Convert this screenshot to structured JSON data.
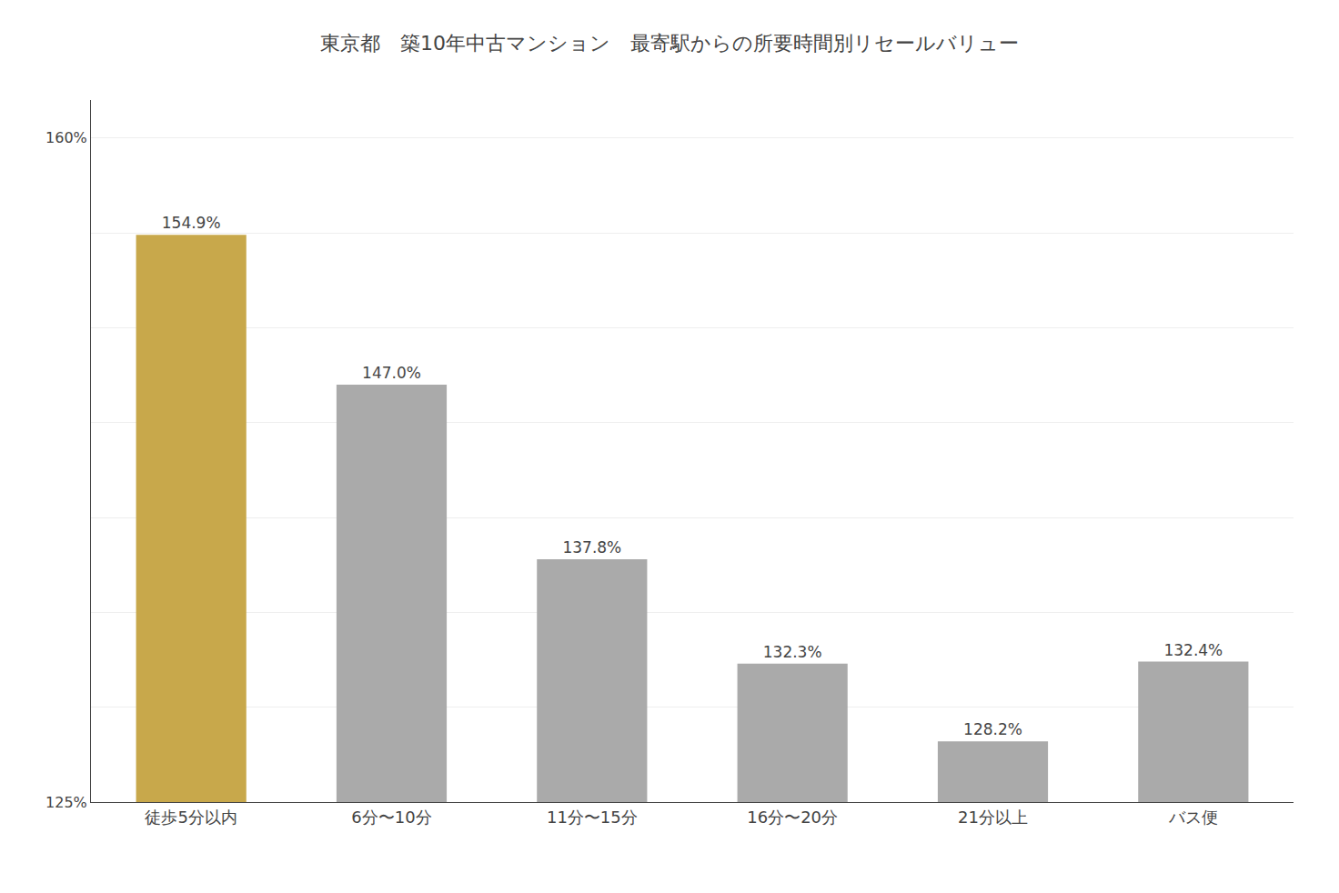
{
  "chart_data": {
    "type": "bar",
    "title": "東京都　築10年中古マンション　最寄駅からの所要時間別リセールバリュー",
    "categories": [
      "徒歩5分以内",
      "6分〜10分",
      "11分〜15分",
      "16分〜20分",
      "21分以上",
      "バス便"
    ],
    "values": [
      154.9,
      147.0,
      137.8,
      132.3,
      128.2,
      132.4
    ],
    "value_labels": [
      "154.9%",
      "147.0%",
      "137.8%",
      "132.3%",
      "128.2%",
      "132.4%"
    ],
    "data_labels": true,
    "colors": [
      "#C8A84B",
      "#aaaaaa",
      "#aaaaaa",
      "#aaaaaa",
      "#aaaaaa",
      "#aaaaaa"
    ],
    "ylim": [
      125,
      162
    ],
    "yticks": [
      {
        "value": 125,
        "label": "125%"
      },
      {
        "value": 130,
        "label": ""
      },
      {
        "value": 135,
        "label": ""
      },
      {
        "value": 140,
        "label": ""
      },
      {
        "value": 145,
        "label": ""
      },
      {
        "value": 150,
        "label": ""
      },
      {
        "value": 155,
        "label": ""
      },
      {
        "value": 160,
        "label": "160%"
      }
    ],
    "grid": true
  }
}
